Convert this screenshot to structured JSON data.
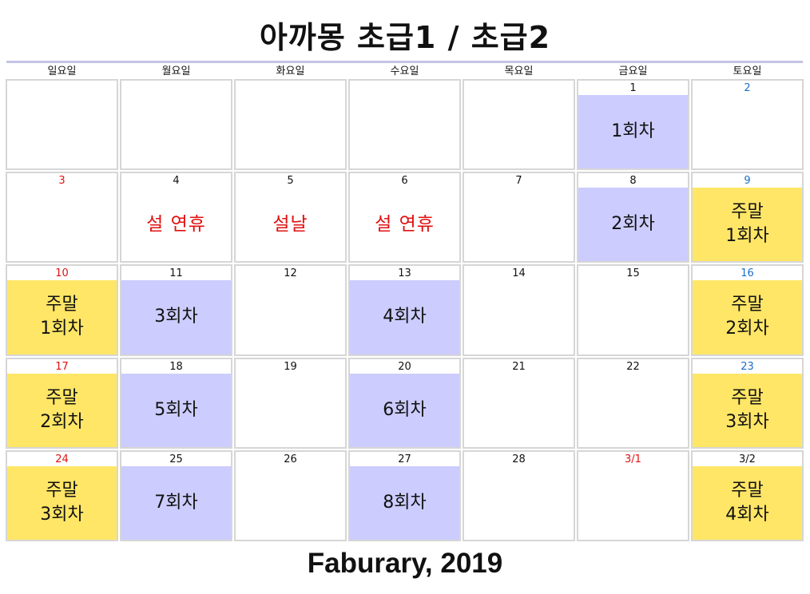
{
  "title": "아까몽 초급1 / 초급2",
  "month_label": "Faburary, 2019",
  "colors": {
    "rule": "#c3c3e6",
    "session_fill": "#ccccff",
    "weekend_fill": "#ffe666",
    "holiday_text": "#e01010",
    "sunday_number": "#e01010",
    "saturday_number": "#1a6ec8",
    "weekday_number": "#111111"
  },
  "weekdays": [
    "일요일",
    "월요일",
    "화요일",
    "수요일",
    "목요일",
    "금요일",
    "토요일"
  ],
  "weeks": [
    [
      {
        "day": "",
        "label": "",
        "kind": ""
      },
      {
        "day": "",
        "label": "",
        "kind": ""
      },
      {
        "day": "",
        "label": "",
        "kind": ""
      },
      {
        "day": "",
        "label": "",
        "kind": ""
      },
      {
        "day": "",
        "label": "",
        "kind": ""
      },
      {
        "day": "1",
        "label": "1회차",
        "kind": "session"
      },
      {
        "day": "2",
        "label": "",
        "kind": ""
      }
    ],
    [
      {
        "day": "3",
        "label": "",
        "kind": ""
      },
      {
        "day": "4",
        "label": "설 연휴",
        "kind": "holiday"
      },
      {
        "day": "5",
        "label": "설날",
        "kind": "holiday"
      },
      {
        "day": "6",
        "label": "설 연휴",
        "kind": "holiday"
      },
      {
        "day": "7",
        "label": "",
        "kind": ""
      },
      {
        "day": "8",
        "label": "2회차",
        "kind": "session"
      },
      {
        "day": "9",
        "label": "주말\n1회차",
        "kind": "weekend"
      }
    ],
    [
      {
        "day": "10",
        "label": "주말\n1회차",
        "kind": "weekend"
      },
      {
        "day": "11",
        "label": "3회차",
        "kind": "session"
      },
      {
        "day": "12",
        "label": "",
        "kind": ""
      },
      {
        "day": "13",
        "label": "4회차",
        "kind": "session"
      },
      {
        "day": "14",
        "label": "",
        "kind": ""
      },
      {
        "day": "15",
        "label": "",
        "kind": ""
      },
      {
        "day": "16",
        "label": "주말\n2회차",
        "kind": "weekend"
      }
    ],
    [
      {
        "day": "17",
        "label": "주말\n2회차",
        "kind": "weekend"
      },
      {
        "day": "18",
        "label": "5회차",
        "kind": "session"
      },
      {
        "day": "19",
        "label": "",
        "kind": ""
      },
      {
        "day": "20",
        "label": "6회차",
        "kind": "session"
      },
      {
        "day": "21",
        "label": "",
        "kind": ""
      },
      {
        "day": "22",
        "label": "",
        "kind": ""
      },
      {
        "day": "23",
        "label": "주말\n3회차",
        "kind": "weekend"
      }
    ],
    [
      {
        "day": "24",
        "label": "주말\n3회차",
        "kind": "weekend"
      },
      {
        "day": "25",
        "label": "7회차",
        "kind": "session"
      },
      {
        "day": "26",
        "label": "",
        "kind": ""
      },
      {
        "day": "27",
        "label": "8회차",
        "kind": "session"
      },
      {
        "day": "28",
        "label": "",
        "kind": ""
      },
      {
        "day": "3/1",
        "label": "",
        "kind": "",
        "number_color": "#e01010"
      },
      {
        "day": "3/2",
        "label": "주말\n4회차",
        "kind": "weekend",
        "number_color": "#111111"
      }
    ]
  ]
}
